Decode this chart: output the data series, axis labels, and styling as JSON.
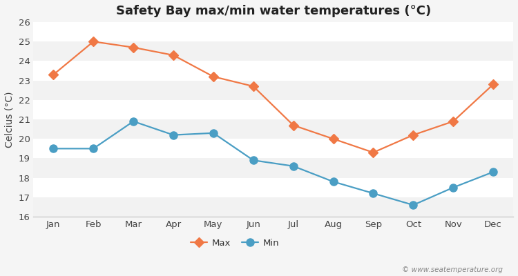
{
  "title": "Safety Bay max/min water temperatures (°C)",
  "ylabel": "Celcius (°C)",
  "months": [
    "Jan",
    "Feb",
    "Mar",
    "Apr",
    "May",
    "Jun",
    "Jul",
    "Aug",
    "Sep",
    "Oct",
    "Nov",
    "Dec"
  ],
  "max_values": [
    23.3,
    25.0,
    24.7,
    24.3,
    23.2,
    22.7,
    20.7,
    20.0,
    19.3,
    20.2,
    20.9,
    22.8
  ],
  "min_values": [
    19.5,
    19.5,
    20.9,
    20.2,
    20.3,
    18.9,
    18.6,
    17.8,
    17.2,
    16.6,
    17.5,
    18.3
  ],
  "max_color": "#f07845",
  "min_color": "#4a9ec4",
  "fig_bg_color": "#f5f5f5",
  "plot_bg_color": "#e8e8e8",
  "band_color": "#f2f2f2",
  "grid_color": "#ffffff",
  "ylim": [
    16,
    26
  ],
  "yticks": [
    16,
    17,
    18,
    19,
    20,
    21,
    22,
    23,
    24,
    25,
    26
  ],
  "max_marker": "D",
  "min_marker": "o",
  "max_marker_size": 7,
  "min_marker_size": 8,
  "line_width": 1.6,
  "legend_labels": [
    "Max",
    "Min"
  ],
  "watermark": "© www.seatemperature.org",
  "title_fontsize": 13,
  "axis_label_fontsize": 10,
  "tick_fontsize": 9.5
}
